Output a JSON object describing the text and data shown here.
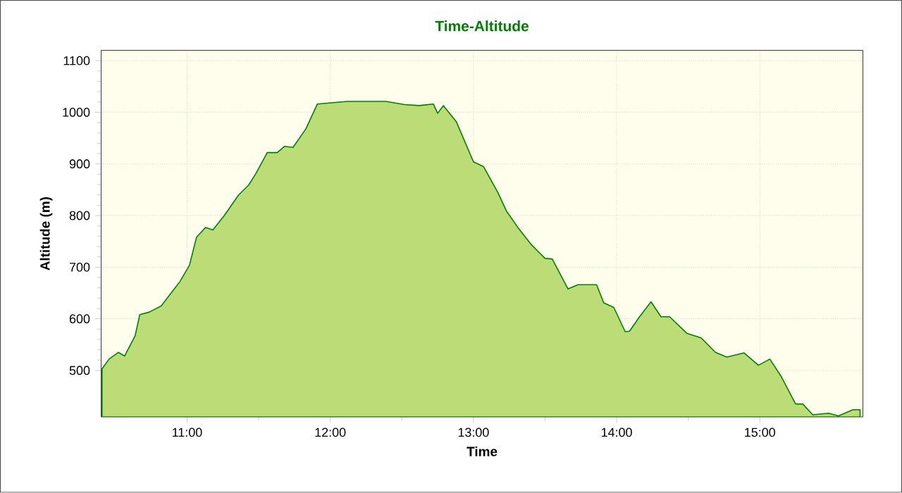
{
  "chart_data": {
    "type": "area",
    "title": "Time-Altitude",
    "xlabel": "Time",
    "ylabel": "Altitude (m)",
    "series": [
      {
        "color": "#bcdc78",
        "x": [
          10.406,
          10.455,
          10.52,
          10.564,
          10.637,
          10.67,
          10.736,
          10.82,
          10.9,
          10.95,
          11.017,
          11.066,
          11.13,
          11.18,
          11.26,
          11.36,
          11.43,
          11.48,
          11.56,
          11.63,
          11.68,
          11.74,
          11.83,
          11.91,
          11.99,
          12.12,
          12.39,
          12.52,
          12.62,
          12.72,
          12.75,
          12.79,
          12.88,
          13.0,
          13.07,
          13.17,
          13.23,
          13.31,
          13.4,
          13.5,
          13.55,
          13.66,
          13.73,
          13.86,
          13.91,
          13.98,
          14.06,
          14.09,
          14.16,
          14.24,
          14.31,
          14.37,
          14.49,
          14.59,
          14.69,
          14.77,
          14.89,
          14.99,
          15.07,
          15.15,
          15.25,
          15.3,
          15.37,
          15.48,
          15.55,
          15.65,
          15.7
        ],
        "values": [
          503,
          522,
          535,
          528,
          567,
          608,
          613,
          625,
          654,
          672,
          704,
          758,
          777,
          772,
          800,
          840,
          859,
          881,
          922,
          922,
          934,
          932,
          968,
          1016,
          1018,
          1021,
          1021,
          1015,
          1013,
          1016,
          998,
          1013,
          982,
          904,
          895,
          845,
          809,
          777,
          745,
          717,
          716,
          658,
          666,
          666,
          631,
          622,
          575,
          576,
          604,
          633,
          604,
          604,
          572,
          563,
          535,
          526,
          534,
          510,
          522,
          488,
          435,
          435,
          414,
          417,
          412,
          424,
          424
        ]
      }
    ],
    "xlim": [
      10.4,
      15.72
    ],
    "ylim": [
      410,
      1120
    ],
    "xticks": [
      {
        "value": 11,
        "label": "11:00"
      },
      {
        "value": 12,
        "label": "12:00"
      },
      {
        "value": 13,
        "label": "13:00"
      },
      {
        "value": 14,
        "label": "14:00"
      },
      {
        "value": 15,
        "label": "15:00"
      }
    ],
    "yticks": [
      500,
      600,
      700,
      800,
      900,
      1000,
      1100
    ],
    "grid": true
  }
}
